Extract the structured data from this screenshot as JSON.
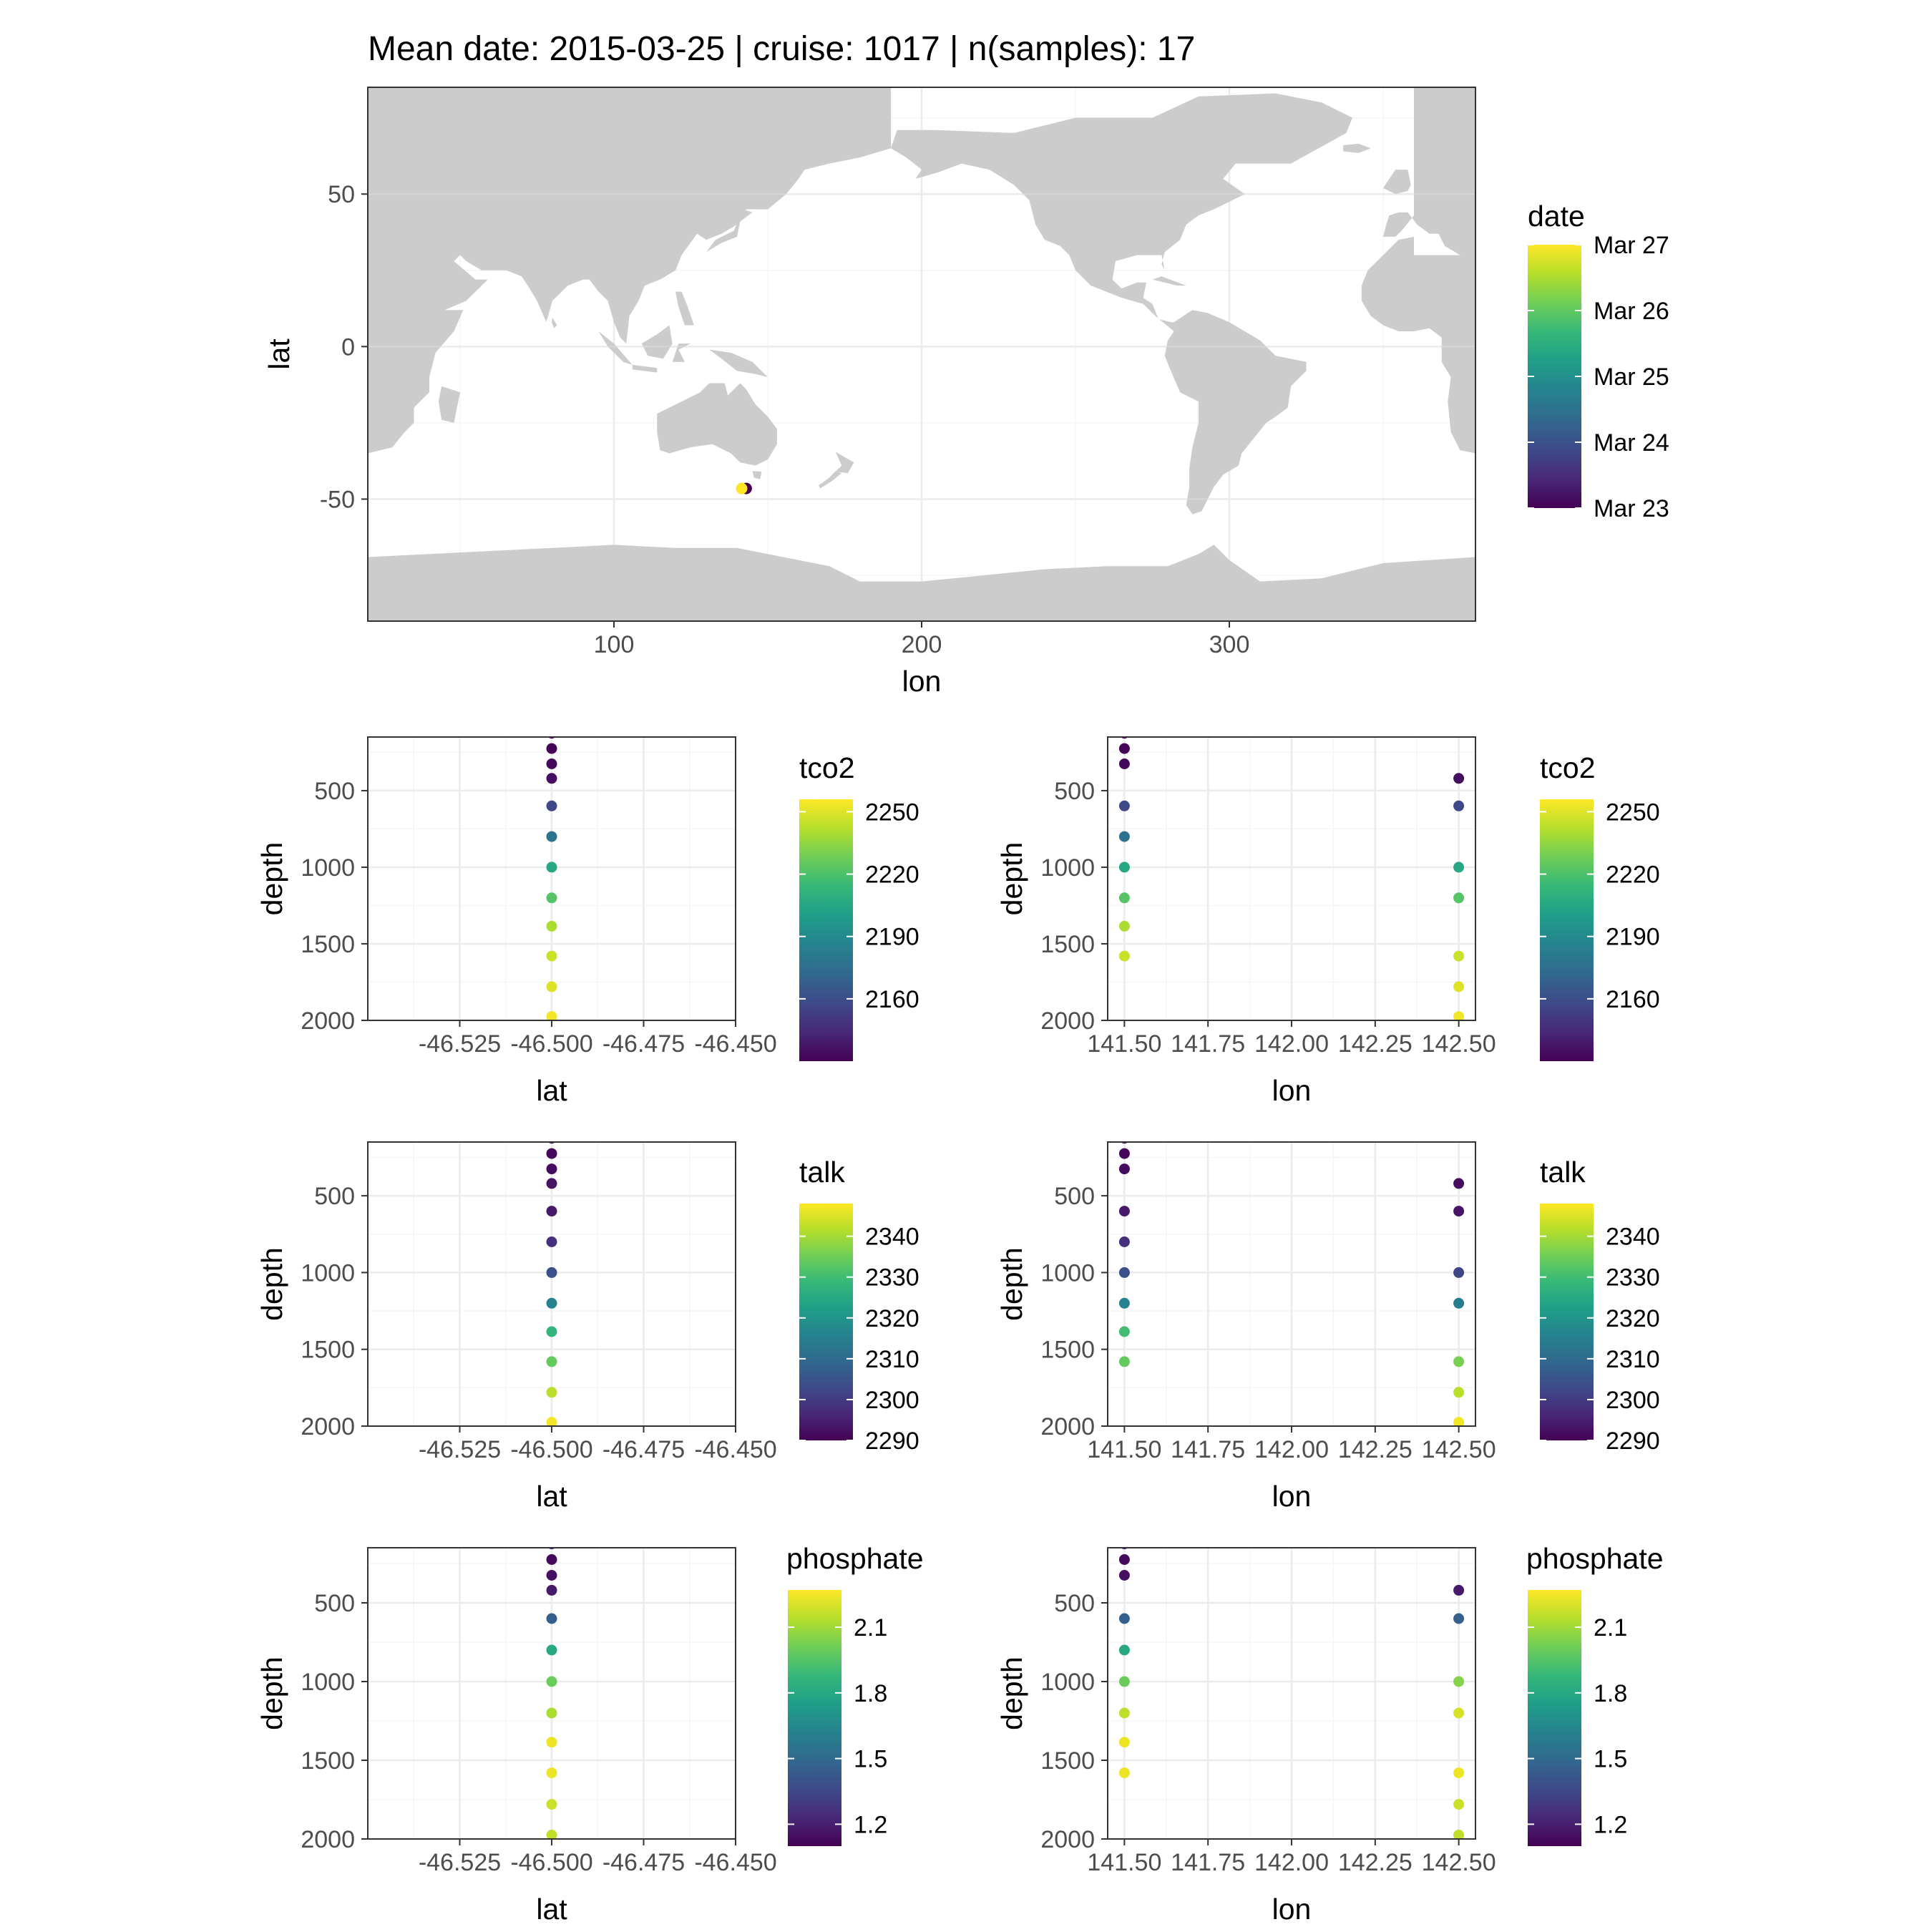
{
  "title": "Mean date: 2015-03-25 | cruise: 1017 | n(samples): 17",
  "colors": {
    "land": "#cccccc",
    "grid_major": "#ebebeb",
    "grid_minor": "#f5f5f5",
    "panel_border": "#333333",
    "tick_text": "#4d4d4d",
    "viridis": [
      "#440154",
      "#482878",
      "#3e4a89",
      "#31688e",
      "#26828e",
      "#1f9e89",
      "#35b779",
      "#6ece58",
      "#b5de2b",
      "#fde725"
    ]
  },
  "chart_data": [
    {
      "id": "map",
      "type": "scatter",
      "subtype": "map",
      "xlabel": "lon",
      "ylabel": "lat",
      "xlim": [
        20,
        380
      ],
      "ylim": [
        -90,
        85
      ],
      "xticks": [
        100,
        200,
        300
      ],
      "yticks": [
        -50,
        0,
        50
      ],
      "grid": true,
      "background": "world land mask",
      "color_scale": {
        "title": "date",
        "domain": [
          0,
          4
        ],
        "ticks": [
          {
            "label": "Mar 27",
            "value": 4
          },
          {
            "label": "Mar 26",
            "value": 3
          },
          {
            "label": "Mar 25",
            "value": 2
          },
          {
            "label": "Mar 24",
            "value": 1
          },
          {
            "label": "Mar 23",
            "value": 0
          }
        ]
      },
      "points": [
        {
          "x": 143.0,
          "y": -46.5,
          "c": 0.0
        },
        {
          "x": 141.5,
          "y": -46.5,
          "c": 4.0
        }
      ],
      "legend": "right"
    },
    {
      "id": "tco2-lat",
      "type": "scatter",
      "xlabel": "lat",
      "ylabel": "depth",
      "xlim": [
        -46.55,
        -46.45
      ],
      "xticks": [
        -46.525,
        -46.5,
        -46.475,
        -46.45
      ],
      "xticklabels": [
        "-46.525",
        "-46.500",
        "-46.475",
        "-46.450"
      ],
      "ylim": [
        2000,
        150
      ],
      "yticks": [
        500,
        1000,
        1500,
        2000
      ],
      "y_reversed": true,
      "grid": true,
      "legend": "right",
      "color_scale": {
        "title": "tco2",
        "domain": [
          2130,
          2256
        ],
        "ticks": [
          {
            "label": "2250",
            "value": 2250
          },
          {
            "label": "2220",
            "value": 2220
          },
          {
            "label": "2190",
            "value": 2190
          },
          {
            "label": "2160",
            "value": 2160
          }
        ]
      },
      "points": [
        {
          "x": -46.5,
          "y": 125,
          "c": 2130
        },
        {
          "x": -46.5,
          "y": 225,
          "c": 2131
        },
        {
          "x": -46.5,
          "y": 325,
          "c": 2133
        },
        {
          "x": -46.5,
          "y": 420,
          "c": 2135
        },
        {
          "x": -46.5,
          "y": 600,
          "c": 2157
        },
        {
          "x": -46.5,
          "y": 800,
          "c": 2178
        },
        {
          "x": -46.5,
          "y": 1000,
          "c": 2205
        },
        {
          "x": -46.5,
          "y": 1200,
          "c": 2222
        },
        {
          "x": -46.5,
          "y": 1385,
          "c": 2240
        },
        {
          "x": -46.5,
          "y": 1580,
          "c": 2246
        },
        {
          "x": -46.5,
          "y": 1780,
          "c": 2250
        },
        {
          "x": -46.5,
          "y": 1975,
          "c": 2254
        }
      ]
    },
    {
      "id": "tco2-lon",
      "type": "scatter",
      "xlabel": "lon",
      "ylabel": "depth",
      "xlim": [
        141.45,
        142.55
      ],
      "xticks": [
        141.5,
        141.75,
        142.0,
        142.25,
        142.5
      ],
      "xticklabels": [
        "141.50",
        "141.75",
        "142.00",
        "142.25",
        "142.50"
      ],
      "ylim": [
        2000,
        150
      ],
      "yticks": [
        500,
        1000,
        1500,
        2000
      ],
      "y_reversed": true,
      "grid": true,
      "legend": "right",
      "color_scale": {
        "title": "tco2",
        "domain": [
          2130,
          2256
        ],
        "ticks": [
          {
            "label": "2250",
            "value": 2250
          },
          {
            "label": "2220",
            "value": 2220
          },
          {
            "label": "2190",
            "value": 2190
          },
          {
            "label": "2160",
            "value": 2160
          }
        ]
      },
      "points": [
        {
          "x": 141.5,
          "y": 125,
          "c": 2130
        },
        {
          "x": 141.5,
          "y": 225,
          "c": 2131
        },
        {
          "x": 141.5,
          "y": 325,
          "c": 2133
        },
        {
          "x": 141.5,
          "y": 600,
          "c": 2157
        },
        {
          "x": 141.5,
          "y": 800,
          "c": 2178
        },
        {
          "x": 141.5,
          "y": 1000,
          "c": 2205
        },
        {
          "x": 141.5,
          "y": 1200,
          "c": 2222
        },
        {
          "x": 141.5,
          "y": 1385,
          "c": 2240
        },
        {
          "x": 141.5,
          "y": 1580,
          "c": 2246
        },
        {
          "x": 142.5,
          "y": 420,
          "c": 2135
        },
        {
          "x": 142.5,
          "y": 600,
          "c": 2157
        },
        {
          "x": 142.5,
          "y": 1000,
          "c": 2205
        },
        {
          "x": 142.5,
          "y": 1200,
          "c": 2222
        },
        {
          "x": 142.5,
          "y": 1580,
          "c": 2246
        },
        {
          "x": 142.5,
          "y": 1780,
          "c": 2250
        },
        {
          "x": 142.5,
          "y": 1975,
          "c": 2254
        }
      ]
    },
    {
      "id": "talk-lat",
      "type": "scatter",
      "xlabel": "lat",
      "ylabel": "depth",
      "xlim": [
        -46.55,
        -46.45
      ],
      "xticks": [
        -46.525,
        -46.5,
        -46.475,
        -46.45
      ],
      "xticklabels": [
        "-46.525",
        "-46.500",
        "-46.475",
        "-46.450"
      ],
      "ylim": [
        2000,
        150
      ],
      "yticks": [
        500,
        1000,
        1500,
        2000
      ],
      "y_reversed": true,
      "grid": true,
      "legend": "right",
      "color_scale": {
        "title": "talk",
        "domain": [
          2290,
          2348
        ],
        "ticks": [
          {
            "label": "2340",
            "value": 2340
          },
          {
            "label": "2330",
            "value": 2330
          },
          {
            "label": "2320",
            "value": 2320
          },
          {
            "label": "2310",
            "value": 2310
          },
          {
            "label": "2300",
            "value": 2300
          },
          {
            "label": "2290",
            "value": 2290
          }
        ]
      },
      "points": [
        {
          "x": -46.5,
          "y": 125,
          "c": 2291
        },
        {
          "x": -46.5,
          "y": 225,
          "c": 2291
        },
        {
          "x": -46.5,
          "y": 325,
          "c": 2292
        },
        {
          "x": -46.5,
          "y": 420,
          "c": 2293
        },
        {
          "x": -46.5,
          "y": 600,
          "c": 2294
        },
        {
          "x": -46.5,
          "y": 800,
          "c": 2298
        },
        {
          "x": -46.5,
          "y": 1000,
          "c": 2304
        },
        {
          "x": -46.5,
          "y": 1200,
          "c": 2316
        },
        {
          "x": -46.5,
          "y": 1385,
          "c": 2328
        },
        {
          "x": -46.5,
          "y": 1580,
          "c": 2334
        },
        {
          "x": -46.5,
          "y": 1780,
          "c": 2342
        },
        {
          "x": -46.5,
          "y": 1975,
          "c": 2347
        }
      ]
    },
    {
      "id": "talk-lon",
      "type": "scatter",
      "xlabel": "lon",
      "ylabel": "depth",
      "xlim": [
        141.45,
        142.55
      ],
      "xticks": [
        141.5,
        141.75,
        142.0,
        142.25,
        142.5
      ],
      "xticklabels": [
        "141.50",
        "141.75",
        "142.00",
        "142.25",
        "142.50"
      ],
      "ylim": [
        2000,
        150
      ],
      "yticks": [
        500,
        1000,
        1500,
        2000
      ],
      "y_reversed": true,
      "grid": true,
      "legend": "right",
      "color_scale": {
        "title": "talk",
        "domain": [
          2290,
          2348
        ],
        "ticks": [
          {
            "label": "2340",
            "value": 2340
          },
          {
            "label": "2330",
            "value": 2330
          },
          {
            "label": "2320",
            "value": 2320
          },
          {
            "label": "2310",
            "value": 2310
          },
          {
            "label": "2300",
            "value": 2300
          },
          {
            "label": "2290",
            "value": 2290
          }
        ]
      },
      "points": [
        {
          "x": 141.5,
          "y": 125,
          "c": 2291
        },
        {
          "x": 141.5,
          "y": 225,
          "c": 2291
        },
        {
          "x": 141.5,
          "y": 325,
          "c": 2292
        },
        {
          "x": 141.5,
          "y": 600,
          "c": 2294
        },
        {
          "x": 141.5,
          "y": 800,
          "c": 2298
        },
        {
          "x": 141.5,
          "y": 1000,
          "c": 2304
        },
        {
          "x": 141.5,
          "y": 1200,
          "c": 2316
        },
        {
          "x": 141.5,
          "y": 1385,
          "c": 2330
        },
        {
          "x": 141.5,
          "y": 1580,
          "c": 2334
        },
        {
          "x": 142.5,
          "y": 420,
          "c": 2292
        },
        {
          "x": 142.5,
          "y": 600,
          "c": 2293
        },
        {
          "x": 142.5,
          "y": 1000,
          "c": 2302
        },
        {
          "x": 142.5,
          "y": 1200,
          "c": 2314
        },
        {
          "x": 142.5,
          "y": 1580,
          "c": 2336
        },
        {
          "x": 142.5,
          "y": 1780,
          "c": 2342
        },
        {
          "x": 142.5,
          "y": 1975,
          "c": 2347
        }
      ]
    },
    {
      "id": "phosphate-lat",
      "type": "scatter",
      "xlabel": "lat",
      "ylabel": "depth",
      "xlim": [
        -46.55,
        -46.45
      ],
      "xticks": [
        -46.525,
        -46.5,
        -46.475,
        -46.45
      ],
      "xticklabels": [
        "-46.525",
        "-46.500",
        "-46.475",
        "-46.450"
      ],
      "ylim": [
        2000,
        150
      ],
      "yticks": [
        500,
        1000,
        1500,
        2000
      ],
      "y_reversed": true,
      "grid": true,
      "legend": "right",
      "color_scale": {
        "title": "phosphate",
        "domain": [
          1.1,
          2.27
        ],
        "ticks": [
          {
            "label": "2.1",
            "value": 2.1
          },
          {
            "label": "1.8",
            "value": 1.8
          },
          {
            "label": "1.5",
            "value": 1.5
          },
          {
            "label": "1.2",
            "value": 1.2
          }
        ]
      },
      "points": [
        {
          "x": -46.5,
          "y": 125,
          "c": 1.12
        },
        {
          "x": -46.5,
          "y": 225,
          "c": 1.13
        },
        {
          "x": -46.5,
          "y": 325,
          "c": 1.15
        },
        {
          "x": -46.5,
          "y": 420,
          "c": 1.18
        },
        {
          "x": -46.5,
          "y": 600,
          "c": 1.45
        },
        {
          "x": -46.5,
          "y": 800,
          "c": 1.8
        },
        {
          "x": -46.5,
          "y": 1000,
          "c": 2.0
        },
        {
          "x": -46.5,
          "y": 1200,
          "c": 2.12
        },
        {
          "x": -46.5,
          "y": 1385,
          "c": 2.24
        },
        {
          "x": -46.5,
          "y": 1580,
          "c": 2.24
        },
        {
          "x": -46.5,
          "y": 1780,
          "c": 2.18
        },
        {
          "x": -46.5,
          "y": 1975,
          "c": 2.16
        }
      ]
    },
    {
      "id": "phosphate-lon",
      "type": "scatter",
      "xlabel": "lon",
      "ylabel": "depth",
      "xlim": [
        141.45,
        142.55
      ],
      "xticks": [
        141.5,
        141.75,
        142.0,
        142.25,
        142.5
      ],
      "xticklabels": [
        "141.50",
        "141.75",
        "142.00",
        "142.25",
        "142.50"
      ],
      "ylim": [
        2000,
        150
      ],
      "yticks": [
        500,
        1000,
        1500,
        2000
      ],
      "y_reversed": true,
      "grid": true,
      "legend": "right",
      "color_scale": {
        "title": "phosphate",
        "domain": [
          1.1,
          2.27
        ],
        "ticks": [
          {
            "label": "2.1",
            "value": 2.1
          },
          {
            "label": "1.8",
            "value": 1.8
          },
          {
            "label": "1.5",
            "value": 1.5
          },
          {
            "label": "1.2",
            "value": 1.2
          }
        ]
      },
      "points": [
        {
          "x": 141.5,
          "y": 125,
          "c": 1.12
        },
        {
          "x": 141.5,
          "y": 225,
          "c": 1.13
        },
        {
          "x": 141.5,
          "y": 325,
          "c": 1.15
        },
        {
          "x": 141.5,
          "y": 600,
          "c": 1.45
        },
        {
          "x": 141.5,
          "y": 800,
          "c": 1.8
        },
        {
          "x": 141.5,
          "y": 1000,
          "c": 2.0
        },
        {
          "x": 141.5,
          "y": 1200,
          "c": 2.15
        },
        {
          "x": 141.5,
          "y": 1385,
          "c": 2.24
        },
        {
          "x": 141.5,
          "y": 1580,
          "c": 2.24
        },
        {
          "x": 142.5,
          "y": 420,
          "c": 1.18
        },
        {
          "x": 142.5,
          "y": 600,
          "c": 1.45
        },
        {
          "x": 142.5,
          "y": 1000,
          "c": 2.05
        },
        {
          "x": 142.5,
          "y": 1200,
          "c": 2.2
        },
        {
          "x": 142.5,
          "y": 1580,
          "c": 2.24
        },
        {
          "x": 142.5,
          "y": 1780,
          "c": 2.18
        },
        {
          "x": 142.5,
          "y": 1975,
          "c": 2.16
        }
      ]
    }
  ]
}
